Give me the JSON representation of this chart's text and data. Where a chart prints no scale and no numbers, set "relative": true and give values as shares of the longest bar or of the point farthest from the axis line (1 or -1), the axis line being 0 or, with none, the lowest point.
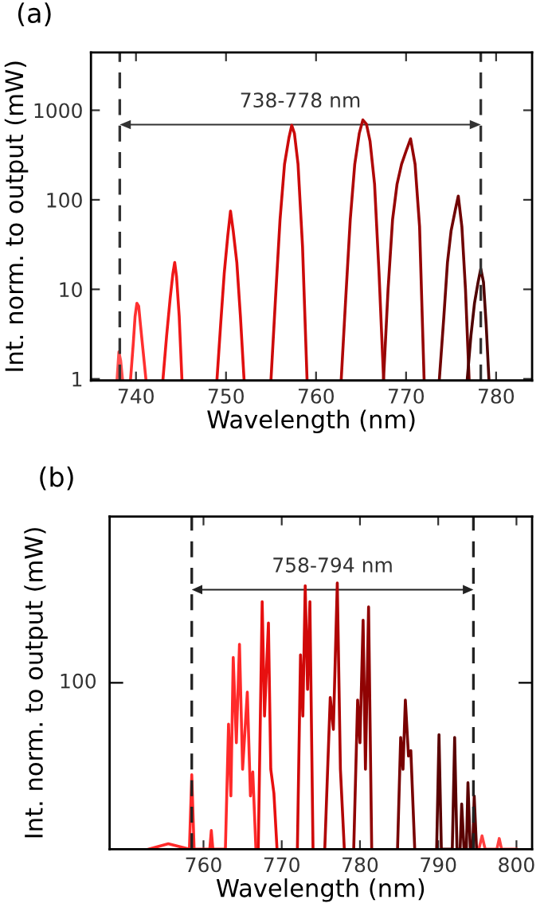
{
  "chart_data": [
    {
      "type": "line",
      "title": "(a)",
      "xlabel": "Wavelength (nm)",
      "ylabel": "Int. norm. to output (mW)",
      "log": "y",
      "xlim": [
        735,
        784
      ],
      "xticks": [
        740,
        750,
        760,
        770,
        780
      ],
      "ylim": [
        0.96,
        4430
      ],
      "yticks": [
        1,
        10,
        100,
        1000
      ],
      "annotations": [
        "738-778 nm"
      ],
      "ref_lines": [
        {
          "axis": "x",
          "value": 738.2,
          "color": "#333333",
          "line_style": "dashed"
        },
        {
          "axis": "x",
          "value": 778.3,
          "color": "#333333",
          "line_style": "dashed"
        }
      ],
      "series": [
        {
          "color": "#ff5050",
          "x": [
            737.9,
            738.1,
            738.3,
            738.5
          ],
          "values": [
            1,
            2,
            1.6,
            1
          ]
        },
        {
          "color": "#ff3030",
          "x": [
            739.4,
            739.7,
            739.9,
            740.1,
            740.3,
            740.5,
            740.8,
            741.1
          ],
          "values": [
            1,
            2.5,
            5,
            7,
            6.5,
            4,
            2,
            1
          ]
        },
        {
          "color": "#f01818",
          "x": [
            743.0,
            743.4,
            743.8,
            744.1,
            744.3,
            744.5,
            744.8,
            745.1
          ],
          "values": [
            1,
            3,
            8,
            15,
            20,
            14,
            5,
            1
          ]
        },
        {
          "color": "#e00f0f",
          "x": [
            749.0,
            749.4,
            749.8,
            750.2,
            750.5,
            750.8,
            751.2,
            751.6,
            752.0
          ],
          "values": [
            1,
            4,
            15,
            40,
            75,
            45,
            20,
            5,
            1
          ]
        },
        {
          "color": "#cc0a0a",
          "x": [
            755.0,
            755.5,
            756.0,
            756.5,
            757.0,
            757.3,
            757.6,
            758.0,
            758.5,
            759.0
          ],
          "values": [
            1,
            8,
            60,
            250,
            500,
            680,
            550,
            250,
            30,
            1
          ]
        },
        {
          "color": "#b00808",
          "x": [
            762.8,
            763.3,
            763.8,
            764.3,
            764.8,
            765.2,
            765.6,
            766.0,
            766.5,
            767.0,
            767.5
          ],
          "values": [
            1,
            8,
            60,
            250,
            550,
            780,
            700,
            450,
            150,
            15,
            1
          ]
        },
        {
          "color": "#950505",
          "x": [
            767.5,
            768.0,
            768.5,
            769.0,
            769.5,
            770.0,
            770.5,
            771.0,
            771.5,
            772.0
          ],
          "values": [
            1,
            10,
            60,
            150,
            250,
            350,
            480,
            250,
            50,
            1
          ]
        },
        {
          "color": "#700303",
          "x": [
            773.7,
            774.2,
            774.6,
            775.0,
            775.5,
            775.8,
            776.2,
            776.6,
            777.0
          ],
          "values": [
            1,
            5,
            20,
            45,
            80,
            110,
            50,
            10,
            1
          ]
        },
        {
          "color": "#500000",
          "x": [
            776.8,
            777.2,
            777.6,
            778.0,
            778.3,
            778.6,
            778.9,
            779.2
          ],
          "values": [
            1,
            3,
            7,
            12,
            17,
            12,
            4,
            1
          ]
        }
      ]
    },
    {
      "type": "line",
      "title": "(b)",
      "xlabel": "Wavelength (nm)",
      "ylabel": "Int. norm. to output (mW)",
      "relative": true,
      "xlim": [
        748,
        802
      ],
      "xticks": [
        760,
        770,
        780,
        790,
        800
      ],
      "annotations": [
        "758-794 nm",
        "100"
      ],
      "ref_lines": [
        {
          "axis": "x",
          "value": 758.5,
          "color": "#222222",
          "line_style": "dashed"
        },
        {
          "axis": "x",
          "value": 794.5,
          "color": "#222222",
          "line_style": "dashed"
        }
      ],
      "series": [
        {
          "color": "#ff2a2a",
          "x": [
            753,
            755.5,
            758.2,
            758.5,
            758.8,
            760.8,
            761,
            761.2,
            762.8,
            763.2,
            763.5,
            763.8,
            764.2,
            764.6,
            765.0,
            765.6,
            766.0,
            766.3,
            766.7
          ],
          "values": [
            0,
            0.02,
            0,
            0.28,
            0,
            0,
            0.07,
            0,
            0,
            0.47,
            0.2,
            0.72,
            0.4,
            0.77,
            0.3,
            0.59,
            0.2,
            0.29,
            0
          ]
        },
        {
          "color": "#e81010",
          "x": [
            767.0,
            767.5,
            767.8,
            768.3,
            768.6,
            769.0,
            769.4
          ],
          "values": [
            0,
            0.93,
            0.5,
            0.85,
            0.3,
            0.21,
            0
          ]
        },
        {
          "color": "#d00808",
          "x": [
            772.0,
            772.4,
            772.7,
            773.0,
            773.3,
            773.6,
            774.0
          ],
          "values": [
            0,
            0.73,
            0.5,
            0.99,
            0.6,
            0.93,
            0
          ]
        },
        {
          "color": "#b00505",
          "x": [
            775.5,
            776.2,
            776.6,
            777.1,
            777.5,
            778.0
          ],
          "values": [
            0,
            0.57,
            0.45,
            1.0,
            0.3,
            0
          ]
        },
        {
          "color": "#900303",
          "x": [
            779.2,
            779.7,
            780.0,
            780.4,
            780.7,
            781.1,
            781.5
          ],
          "values": [
            0,
            0.56,
            0.4,
            0.86,
            0.3,
            0.91,
            0
          ]
        },
        {
          "color": "#780202",
          "x": [
            784.8,
            785.2,
            785.5,
            785.8,
            786.2,
            786.5,
            787.0
          ],
          "values": [
            0,
            0.42,
            0.3,
            0.56,
            0.35,
            0.37,
            0
          ]
        },
        {
          "color": "#5a0000",
          "x": [
            789.8,
            790.1,
            790.4,
            791.8,
            792.1,
            792.4,
            792.8,
            793.0,
            793.3,
            793.6,
            793.8,
            794.1,
            794.4,
            794.6,
            794.9
          ],
          "values": [
            0,
            0.43,
            0,
            0,
            0.42,
            0,
            0,
            0.17,
            0,
            0,
            0.25,
            0,
            0,
            0.2,
            0
          ]
        },
        {
          "color": "#ff4040",
          "x": [
            795.2,
            795.6,
            796.0,
            797.5,
            797.8,
            798.1,
            800
          ],
          "values": [
            0,
            0.05,
            0,
            0,
            0.04,
            0,
            0
          ]
        }
      ]
    }
  ]
}
